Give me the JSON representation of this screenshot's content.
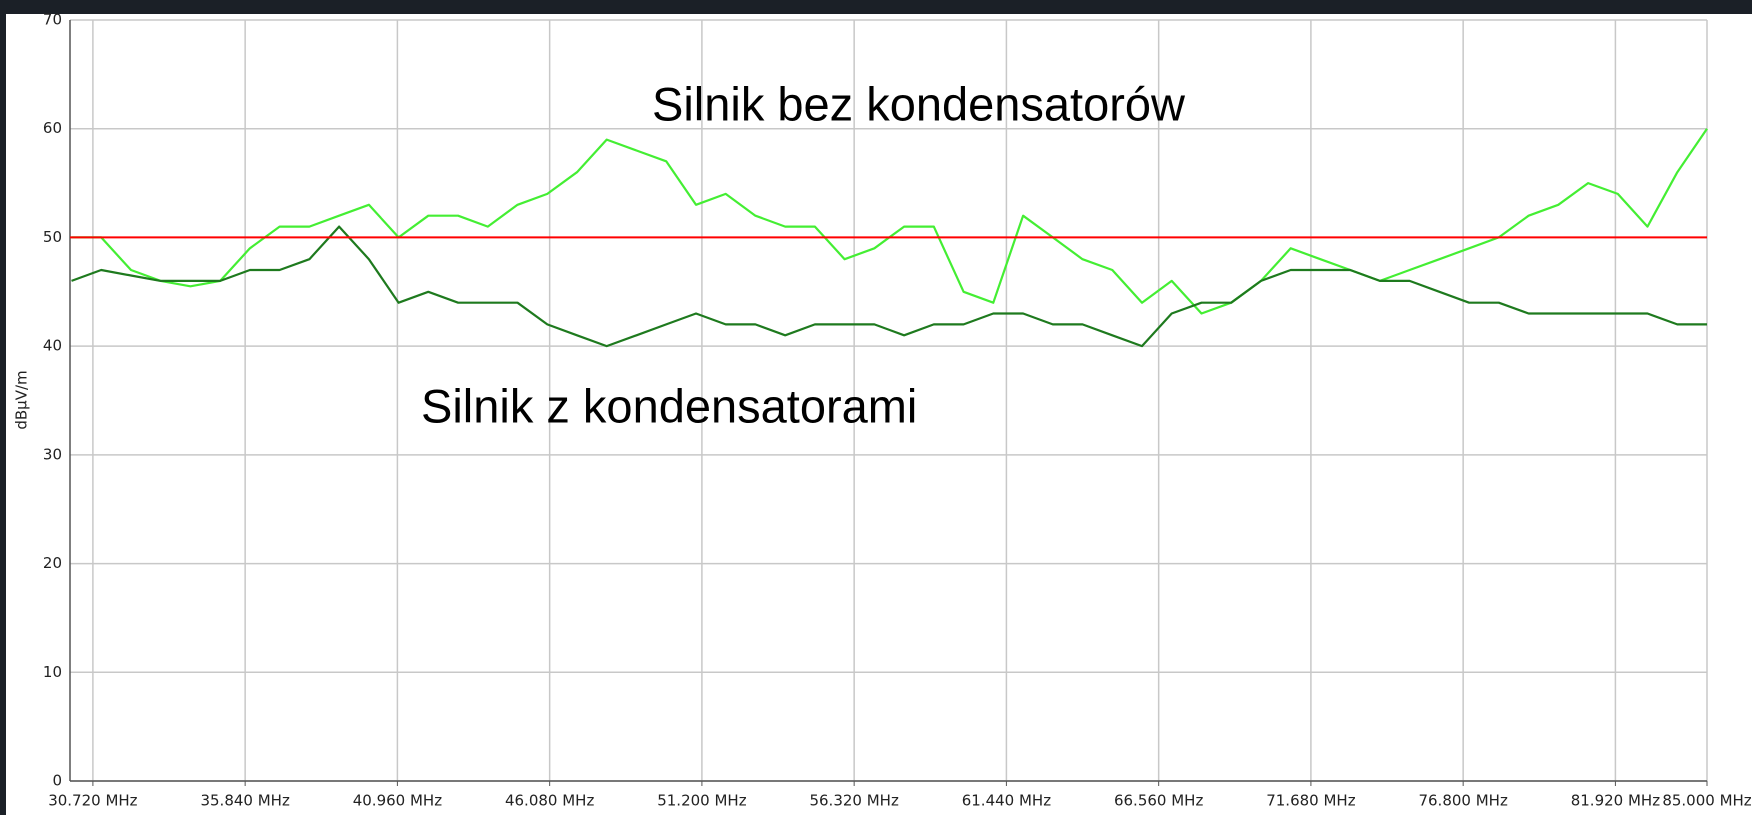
{
  "chart_data": {
    "type": "line",
    "y_label": "dBµV/m",
    "annotations": [
      "Silnik bez kondensatorów",
      "Silnik z kondensatorami"
    ],
    "x": [
      30,
      31,
      32,
      33,
      34,
      35,
      36,
      37,
      38,
      39,
      40,
      41,
      42,
      43,
      44,
      45,
      46,
      47,
      48,
      49,
      50,
      51,
      52,
      53,
      54,
      55,
      56,
      57,
      58,
      59,
      60,
      61,
      62,
      63,
      64,
      65,
      66,
      67,
      68,
      69,
      70,
      71,
      72,
      73,
      74,
      75,
      76,
      77,
      78,
      79,
      80,
      81,
      82,
      83,
      84,
      85
    ],
    "series": [
      {
        "color": "#44ee33",
        "values": [
          50,
          50,
          47,
          46,
          45.5,
          46,
          49,
          51,
          51,
          52,
          53,
          50,
          52,
          52,
          51,
          53,
          54,
          56,
          59,
          58,
          57,
          53,
          54,
          52,
          51,
          51,
          48,
          49,
          51,
          51,
          45,
          44,
          52,
          50,
          48,
          47,
          44,
          46,
          43,
          44,
          46,
          49,
          48,
          47,
          46,
          47,
          48,
          49,
          50,
          52,
          53,
          55,
          54,
          51,
          56,
          60
        ]
      },
      {
        "color": "#1e7a1e",
        "values": [
          46,
          47,
          46.5,
          46,
          46,
          46,
          47,
          47,
          48,
          51,
          48,
          44,
          45,
          44,
          44,
          44,
          42,
          41,
          40,
          41,
          42,
          43,
          42,
          42,
          41,
          42,
          42,
          42,
          41,
          42,
          42,
          43,
          43,
          42,
          42,
          41,
          40,
          43,
          44,
          44,
          46,
          47,
          47,
          47,
          46,
          46,
          45,
          44,
          44,
          43,
          43,
          43,
          43,
          43,
          42,
          42
        ]
      }
    ],
    "threshold": {
      "value": 50,
      "color": "#ff0000"
    },
    "xlim": [
      29.95,
      85.0
    ],
    "ylim": [
      0,
      70
    ],
    "xticks": [
      {
        "value": 30.72,
        "label": "30.720 MHz"
      },
      {
        "value": 35.84,
        "label": "35.840 MHz"
      },
      {
        "value": 40.96,
        "label": "40.960 MHz"
      },
      {
        "value": 46.08,
        "label": "46.080 MHz"
      },
      {
        "value": 51.2,
        "label": "51.200 MHz"
      },
      {
        "value": 56.32,
        "label": "56.320 MHz"
      },
      {
        "value": 61.44,
        "label": "61.440 MHz"
      },
      {
        "value": 66.56,
        "label": "66.560 MHz"
      },
      {
        "value": 71.68,
        "label": "71.680 MHz"
      },
      {
        "value": 76.8,
        "label": "76.800 MHz"
      },
      {
        "value": 81.92,
        "label": "81.920 MHz"
      },
      {
        "value": 85.0,
        "label": "85.000 MHz"
      }
    ],
    "yticks": [
      0,
      10,
      20,
      30,
      40,
      50,
      60,
      70
    ],
    "grid": true
  }
}
